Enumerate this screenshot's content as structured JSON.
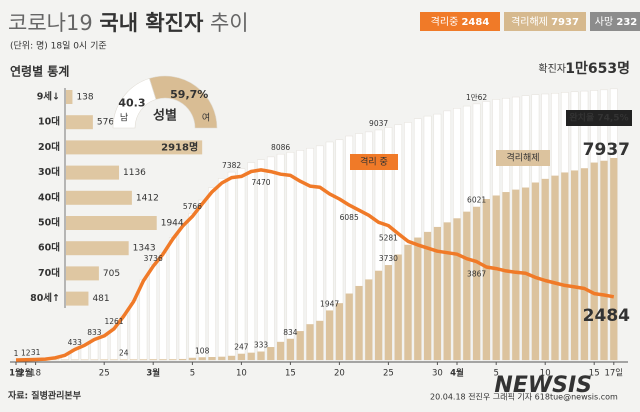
{
  "title": [
    "코로나19",
    "국내 확진자",
    "추이"
  ],
  "subtitle": "(단위: 명) 18일 0시 기준",
  "legend": [
    {
      "label": "격리중",
      "value": 2484,
      "color": "#f07a28"
    },
    {
      "label": "격리해제",
      "value": 7937,
      "color": "#d6b98e"
    },
    {
      "label": "사망",
      "value": 232,
      "color": "#8c8c8c"
    }
  ],
  "chart_data": [
    {
      "type": "combo",
      "categories": [
        "1월",
        "2월",
        "18",
        null,
        null,
        null,
        null,
        null,
        null,
        "25",
        null,
        null,
        null,
        null,
        "3월",
        null,
        null,
        null,
        "5",
        null,
        null,
        null,
        null,
        "10",
        null,
        null,
        null,
        null,
        "15",
        null,
        null,
        null,
        null,
        "20",
        null,
        null,
        null,
        null,
        "25",
        null,
        null,
        null,
        null,
        "30",
        null,
        "4월",
        null,
        null,
        null,
        "5",
        null,
        null,
        null,
        null,
        "10",
        null,
        null,
        null,
        null,
        "15",
        null,
        "17일"
      ],
      "ylim": [
        0,
        11000
      ],
      "series": [
        {
          "name": "확진자",
          "type": "bar",
          "color": "#ffffff",
          "values": [
            1,
            12,
            31,
            51,
            104,
            204,
            433,
            602,
            833,
            977,
            1261,
            1766,
            2337,
            3150,
            3736,
            4212,
            4812,
            5328,
            5766,
            6284,
            6767,
            7134,
            7382,
            7513,
            7755,
            7869,
            7979,
            8086,
            8162,
            8236,
            8320,
            8413,
            8565,
            8652,
            8799,
            8897,
            8961,
            9037,
            9137,
            9241,
            9332,
            9478,
            9583,
            9661,
            9786,
            9887,
            9976,
            10062,
            10156,
            10237,
            10284,
            10331,
            10384,
            10423,
            10450,
            10480,
            10512,
            10537,
            10564,
            10591,
            10613,
            10653
          ],
          "value_labels": [
            "1",
            "12",
            "31",
            null,
            null,
            null,
            "433",
            null,
            "833",
            null,
            "1261",
            null,
            null,
            null,
            "3736",
            null,
            null,
            null,
            "5766",
            null,
            null,
            null,
            "7382",
            null,
            null,
            null,
            null,
            "8086",
            null,
            null,
            null,
            null,
            null,
            null,
            null,
            null,
            null,
            "9037",
            null,
            null,
            null,
            null,
            null,
            null,
            null,
            null,
            null,
            "1만62",
            null,
            null,
            null,
            null,
            null,
            null,
            null,
            null,
            null,
            null,
            null,
            null,
            null,
            "1만653명"
          ]
        },
        {
          "name": "격리해제",
          "type": "bar",
          "color": "#dcc39e",
          "values": [
            0,
            0,
            12,
            16,
            16,
            17,
            18,
            18,
            18,
            22,
            22,
            24,
            24,
            27,
            30,
            30,
            31,
            41,
            88,
            108,
            118,
            130,
            166,
            247,
            288,
            333,
            510,
            714,
            834,
            1137,
            1407,
            1540,
            1947,
            2233,
            2612,
            2909,
            3166,
            3507,
            3730,
            4144,
            4528,
            4811,
            5033,
            5228,
            5408,
            5567,
            5828,
            6021,
            6325,
            6463,
            6598,
            6694,
            6776,
            6973,
            7117,
            7243,
            7368,
            7447,
            7534,
            7757,
            7829,
            7937
          ],
          "value_labels": [
            null,
            null,
            null,
            null,
            null,
            null,
            null,
            null,
            null,
            null,
            null,
            "24",
            null,
            null,
            null,
            null,
            null,
            null,
            null,
            "108",
            null,
            null,
            null,
            "247",
            null,
            "333",
            null,
            null,
            "834",
            null,
            null,
            null,
            "1947",
            null,
            null,
            null,
            null,
            null,
            "3730",
            null,
            null,
            null,
            null,
            null,
            null,
            null,
            null,
            "6021",
            null,
            null,
            null,
            null,
            null,
            null,
            null,
            null,
            null,
            null,
            null,
            null,
            null,
            "7937"
          ]
        },
        {
          "name": "격리 중",
          "type": "line",
          "color": "#f07a28",
          "values": [
            1,
            12,
            19,
            35,
            87,
            185,
            413,
            578,
            807,
            945,
            1227,
            1729,
            2297,
            3106,
            3686,
            4160,
            4753,
            5255,
            5643,
            6134,
            6605,
            6954,
            7165,
            7212,
            7407,
            7470,
            7402,
            7300,
            7253,
            7024,
            6832,
            6789,
            6527,
            6325,
            6085,
            5884,
            5684,
            5410,
            5281,
            4966,
            4665,
            4523,
            4398,
            4275,
            4216,
            4155,
            3979,
            3867,
            3654,
            3591,
            3500,
            3445,
            3408,
            3246,
            3125,
            3026,
            2930,
            2873,
            2808,
            2609,
            2555,
            2484
          ],
          "value_labels": [
            null,
            null,
            null,
            null,
            null,
            null,
            null,
            null,
            null,
            null,
            null,
            null,
            null,
            null,
            null,
            null,
            null,
            null,
            null,
            null,
            null,
            null,
            null,
            null,
            null,
            "7470",
            null,
            null,
            null,
            null,
            null,
            null,
            null,
            null,
            "6085",
            null,
            null,
            null,
            "5281",
            null,
            null,
            null,
            null,
            null,
            null,
            null,
            null,
            "3867",
            null,
            null,
            null,
            null,
            null,
            null,
            null,
            null,
            null,
            null,
            null,
            null,
            null,
            "2484"
          ]
        }
      ],
      "annotations": [
        "완치율 74,5%"
      ]
    },
    {
      "type": "hbar",
      "title": "연령별 통계",
      "categories": [
        "9세↓",
        "10대",
        "20대",
        "30대",
        "40대",
        "50대",
        "60대",
        "70대",
        "80세↑"
      ],
      "values": [
        138,
        576,
        2918,
        1136,
        1412,
        1944,
        1343,
        705,
        481
      ],
      "value_labels": [
        "138",
        "576",
        "2918명",
        "1136",
        "1412",
        "1944",
        "1343",
        "705",
        "481"
      ],
      "xlim": [
        0,
        3000
      ],
      "color": "#dfc7a2"
    },
    {
      "type": "pie",
      "title": "성별",
      "categories": [
        "남",
        "여"
      ],
      "values": [
        40.3,
        59.7
      ],
      "value_labels": [
        "40.3",
        "59,7%"
      ],
      "colors": [
        "#ffffff",
        "#d9bd94"
      ]
    }
  ],
  "source": "자료: 질병관리본부",
  "credit": "20.04.18 전진우 그래픽 기자 618tue@newsis.com",
  "watermark": "NEWSIS"
}
